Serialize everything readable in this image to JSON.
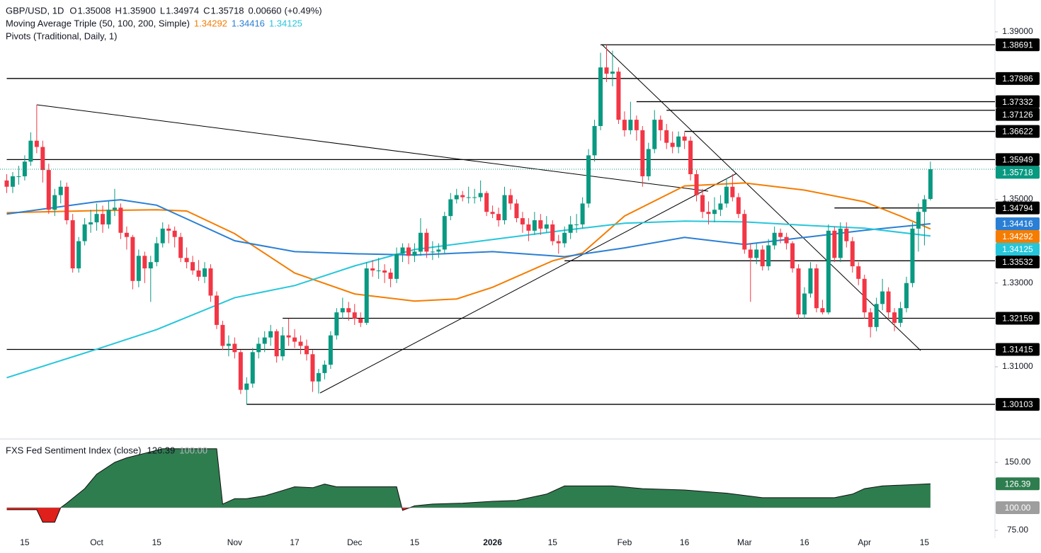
{
  "chart_data": {
    "type": "candlestick",
    "header": {
      "symbol": "GBP/USD, 1D",
      "fields": [
        {
          "key": "O",
          "value": 1.35008,
          "label": "1.35008"
        },
        {
          "key": "H",
          "value": 1.359,
          "label": "1.35900"
        },
        {
          "key": "L",
          "value": 1.34974,
          "label": "1.34974"
        },
        {
          "key": "C",
          "value": 1.35718,
          "label": "1.35718"
        }
      ],
      "change": {
        "value": 0.0066,
        "label": "0.00660"
      },
      "change_pct": {
        "value": 0.49,
        "label": "(+0.49%)"
      }
    },
    "bull_color": "#089981",
    "bear_color": "#f23645",
    "ylim": [
      1.2936,
      1.3976
    ],
    "yticks": [
      {
        "value": 1.39,
        "label": "1.39000"
      },
      {
        "value": 1.35,
        "label": "1.35000"
      },
      {
        "value": 1.33,
        "label": "1.33000"
      },
      {
        "value": 1.31,
        "label": "1.31000"
      }
    ],
    "grid": false,
    "categories": [
      null,
      null,
      null,
      "15",
      null,
      null,
      null,
      null,
      null,
      null,
      null,
      null,
      null,
      null,
      null,
      "Oct",
      null,
      null,
      null,
      null,
      null,
      null,
      null,
      null,
      null,
      "15",
      null,
      null,
      null,
      null,
      null,
      null,
      null,
      null,
      null,
      null,
      null,
      null,
      "Nov",
      null,
      null,
      null,
      null,
      null,
      null,
      null,
      null,
      null,
      "17",
      null,
      null,
      null,
      null,
      null,
      null,
      null,
      null,
      null,
      "Dec",
      null,
      null,
      null,
      null,
      null,
      null,
      null,
      null,
      null,
      "15",
      null,
      null,
      null,
      null,
      null,
      null,
      null,
      null,
      null,
      null,
      null,
      null,
      "2026",
      null,
      null,
      null,
      null,
      null,
      null,
      null,
      null,
      null,
      "15",
      null,
      null,
      null,
      null,
      null,
      null,
      null,
      null,
      null,
      null,
      null,
      "Feb",
      null,
      null,
      null,
      null,
      null,
      null,
      null,
      null,
      null,
      "16",
      null,
      null,
      null,
      null,
      null,
      null,
      null,
      null,
      null,
      "Mar",
      null,
      null,
      null,
      null,
      null,
      null,
      null,
      null,
      null,
      "16",
      null,
      null,
      null,
      null,
      null,
      null,
      null,
      null,
      null,
      "Apr",
      null,
      null,
      null,
      null,
      null,
      null,
      null,
      null,
      null,
      "15",
      null
    ],
    "candles": [
      [
        1.3545,
        1.356,
        1.3515,
        1.353
      ],
      [
        1.353,
        1.3565,
        1.3515,
        1.3555
      ],
      [
        1.3555,
        1.358,
        1.3535,
        1.3555
      ],
      [
        1.3555,
        1.3605,
        1.3545,
        1.359
      ],
      [
        1.359,
        1.366,
        1.358,
        1.364
      ],
      [
        1.364,
        1.3726,
        1.361,
        1.3625
      ],
      [
        1.3625,
        1.364,
        1.354,
        1.357
      ],
      [
        1.357,
        1.3585,
        1.3465,
        1.3475
      ],
      [
        1.3475,
        1.3525,
        1.346,
        1.351
      ],
      [
        1.351,
        1.3545,
        1.349,
        1.353
      ],
      [
        1.353,
        1.354,
        1.344,
        1.345
      ],
      [
        1.345,
        1.3465,
        1.3325,
        1.3335
      ],
      [
        1.3335,
        1.341,
        1.3325,
        1.34
      ],
      [
        1.34,
        1.3455,
        1.339,
        1.344
      ],
      [
        1.344,
        1.3475,
        1.342,
        1.3445
      ],
      [
        1.3445,
        1.349,
        1.3425,
        1.3465
      ],
      [
        1.3465,
        1.3485,
        1.342,
        1.344
      ],
      [
        1.344,
        1.3495,
        1.343,
        1.3475
      ],
      [
        1.3475,
        1.3525,
        1.346,
        1.348
      ],
      [
        1.348,
        1.349,
        1.3405,
        1.342
      ],
      [
        1.342,
        1.3435,
        1.338,
        1.341
      ],
      [
        1.341,
        1.3415,
        1.3285,
        1.3305
      ],
      [
        1.3305,
        1.338,
        1.329,
        1.3365
      ],
      [
        1.3365,
        1.3375,
        1.33,
        1.3335
      ],
      [
        1.3335,
        1.3365,
        1.3255,
        1.335
      ],
      [
        1.335,
        1.341,
        1.334,
        1.3395
      ],
      [
        1.3395,
        1.3445,
        1.3385,
        1.343
      ],
      [
        1.343,
        1.344,
        1.3395,
        1.3425
      ],
      [
        1.3425,
        1.3435,
        1.3385,
        1.341
      ],
      [
        1.341,
        1.342,
        1.335,
        1.336
      ],
      [
        1.336,
        1.3385,
        1.3335,
        1.335
      ],
      [
        1.335,
        1.3365,
        1.332,
        1.333
      ],
      [
        1.333,
        1.3355,
        1.3305,
        1.3315
      ],
      [
        1.3315,
        1.335,
        1.33,
        1.3335
      ],
      [
        1.3335,
        1.3345,
        1.3255,
        1.327
      ],
      [
        1.327,
        1.328,
        1.319,
        1.32
      ],
      [
        1.32,
        1.321,
        1.314,
        1.315
      ],
      [
        1.315,
        1.3175,
        1.3125,
        1.3155
      ],
      [
        1.3155,
        1.317,
        1.312,
        1.3135
      ],
      [
        1.3135,
        1.314,
        1.3035,
        1.3045
      ],
      [
        1.3045,
        1.3075,
        1.301,
        1.306
      ],
      [
        1.306,
        1.3145,
        1.305,
        1.3135
      ],
      [
        1.3135,
        1.317,
        1.312,
        1.3155
      ],
      [
        1.3155,
        1.3185,
        1.3135,
        1.317
      ],
      [
        1.317,
        1.32,
        1.315,
        1.3185
      ],
      [
        1.3185,
        1.319,
        1.311,
        1.3125
      ],
      [
        1.3125,
        1.3195,
        1.3115,
        1.3175
      ],
      [
        1.3175,
        1.3215,
        1.315,
        1.317
      ],
      [
        1.317,
        1.319,
        1.3145,
        1.316
      ],
      [
        1.316,
        1.3175,
        1.313,
        1.315
      ],
      [
        1.315,
        1.3165,
        1.3115,
        1.313
      ],
      [
        1.313,
        1.314,
        1.304,
        1.3065
      ],
      [
        1.3065,
        1.3095,
        1.3036,
        1.3085
      ],
      [
        1.3085,
        1.3115,
        1.307,
        1.3105
      ],
      [
        1.3105,
        1.3185,
        1.3095,
        1.3175
      ],
      [
        1.3175,
        1.324,
        1.3165,
        1.323
      ],
      [
        1.323,
        1.3265,
        1.3215,
        1.324
      ],
      [
        1.324,
        1.3255,
        1.321,
        1.323
      ],
      [
        1.323,
        1.325,
        1.32,
        1.3215
      ],
      [
        1.3215,
        1.323,
        1.3195,
        1.3205
      ],
      [
        1.3205,
        1.335,
        1.32,
        1.3335
      ],
      [
        1.3335,
        1.3355,
        1.3315,
        1.333
      ],
      [
        1.333,
        1.336,
        1.331,
        1.333
      ],
      [
        1.333,
        1.3345,
        1.33,
        1.3325
      ],
      [
        1.3325,
        1.3335,
        1.329,
        1.331
      ],
      [
        1.331,
        1.3385,
        1.33,
        1.337
      ],
      [
        1.337,
        1.3395,
        1.335,
        1.3385
      ],
      [
        1.3385,
        1.3395,
        1.3345,
        1.3365
      ],
      [
        1.3365,
        1.3395,
        1.335,
        1.3375
      ],
      [
        1.3375,
        1.3455,
        1.3365,
        1.342
      ],
      [
        1.342,
        1.343,
        1.336,
        1.3375
      ],
      [
        1.3375,
        1.34,
        1.3355,
        1.3375
      ],
      [
        1.3375,
        1.3395,
        1.336,
        1.338
      ],
      [
        1.338,
        1.347,
        1.337,
        1.346
      ],
      [
        1.346,
        1.3515,
        1.345,
        1.35
      ],
      [
        1.35,
        1.3525,
        1.349,
        1.351
      ],
      [
        1.351,
        1.352,
        1.3495,
        1.3505
      ],
      [
        1.3505,
        1.353,
        1.349,
        1.3505
      ],
      [
        1.3505,
        1.3525,
        1.349,
        1.3505
      ],
      [
        1.3505,
        1.3545,
        1.3495,
        1.3515
      ],
      [
        1.3515,
        1.352,
        1.346,
        1.347
      ],
      [
        1.347,
        1.3485,
        1.3455,
        1.3465
      ],
      [
        1.3465,
        1.348,
        1.3435,
        1.345
      ],
      [
        1.345,
        1.353,
        1.344,
        1.351
      ],
      [
        1.351,
        1.3525,
        1.3475,
        1.349
      ],
      [
        1.349,
        1.35,
        1.3445,
        1.3455
      ],
      [
        1.3455,
        1.347,
        1.342,
        1.344
      ],
      [
        1.344,
        1.3455,
        1.34,
        1.3425
      ],
      [
        1.3425,
        1.347,
        1.3415,
        1.345
      ],
      [
        1.345,
        1.3465,
        1.3415,
        1.343
      ],
      [
        1.343,
        1.346,
        1.342,
        1.344
      ],
      [
        1.344,
        1.345,
        1.339,
        1.34
      ],
      [
        1.34,
        1.3415,
        1.337,
        1.3395
      ],
      [
        1.3395,
        1.3435,
        1.3385,
        1.342
      ],
      [
        1.342,
        1.346,
        1.3405,
        1.344
      ],
      [
        1.344,
        1.3465,
        1.342,
        1.344
      ],
      [
        1.344,
        1.3505,
        1.343,
        1.349
      ],
      [
        1.349,
        1.362,
        1.348,
        1.3605
      ],
      [
        1.3605,
        1.369,
        1.359,
        1.3675
      ],
      [
        1.3675,
        1.385,
        1.3665,
        1.3815
      ],
      [
        1.3815,
        1.3869,
        1.378,
        1.38
      ],
      [
        1.38,
        1.3855,
        1.377,
        1.3805
      ],
      [
        1.3805,
        1.3815,
        1.368,
        1.369
      ],
      [
        1.369,
        1.371,
        1.365,
        1.3665
      ],
      [
        1.3665,
        1.3733,
        1.3655,
        1.369
      ],
      [
        1.369,
        1.37,
        1.364,
        1.3665
      ],
      [
        1.3665,
        1.3675,
        1.353,
        1.3555
      ],
      [
        1.3555,
        1.3635,
        1.3545,
        1.362
      ],
      [
        1.362,
        1.3713,
        1.361,
        1.369
      ],
      [
        1.369,
        1.37,
        1.364,
        1.3665
      ],
      [
        1.3665,
        1.368,
        1.362,
        1.3635
      ],
      [
        1.3635,
        1.3662,
        1.361,
        1.3625
      ],
      [
        1.3625,
        1.3662,
        1.361,
        1.365
      ],
      [
        1.365,
        1.366,
        1.362,
        1.364
      ],
      [
        1.364,
        1.365,
        1.3545,
        1.356
      ],
      [
        1.356,
        1.357,
        1.3495,
        1.351
      ],
      [
        1.351,
        1.3525,
        1.3455,
        1.347
      ],
      [
        1.347,
        1.3495,
        1.344,
        1.3465
      ],
      [
        1.3465,
        1.3505,
        1.3445,
        1.3475
      ],
      [
        1.3475,
        1.351,
        1.346,
        1.349
      ],
      [
        1.349,
        1.355,
        1.348,
        1.353
      ],
      [
        1.353,
        1.356,
        1.3495,
        1.3505
      ],
      [
        1.3505,
        1.3515,
        1.3455,
        1.3465
      ],
      [
        1.3465,
        1.3475,
        1.337,
        1.338
      ],
      [
        1.338,
        1.3395,
        1.3255,
        1.336
      ],
      [
        1.336,
        1.3395,
        1.3345,
        1.338
      ],
      [
        1.338,
        1.339,
        1.333,
        1.334
      ],
      [
        1.334,
        1.3405,
        1.333,
        1.339
      ],
      [
        1.339,
        1.3435,
        1.338,
        1.342
      ],
      [
        1.342,
        1.343,
        1.3395,
        1.341
      ],
      [
        1.341,
        1.342,
        1.338,
        1.3395
      ],
      [
        1.3395,
        1.34,
        1.3325,
        1.3335
      ],
      [
        1.3335,
        1.3345,
        1.3215,
        1.3225
      ],
      [
        1.3225,
        1.329,
        1.3215,
        1.3275
      ],
      [
        1.3275,
        1.335,
        1.3265,
        1.3335
      ],
      [
        1.3335,
        1.3345,
        1.323,
        1.324
      ],
      [
        1.324,
        1.326,
        1.3225,
        1.323
      ],
      [
        1.323,
        1.344,
        1.3225,
        1.3425
      ],
      [
        1.3425,
        1.3435,
        1.335,
        1.336
      ],
      [
        1.336,
        1.3445,
        1.335,
        1.343
      ],
      [
        1.343,
        1.3445,
        1.3385,
        1.34
      ],
      [
        1.34,
        1.341,
        1.3325,
        1.334
      ],
      [
        1.334,
        1.335,
        1.3295,
        1.331
      ],
      [
        1.331,
        1.332,
        1.3215,
        1.323
      ],
      [
        1.323,
        1.324,
        1.317,
        1.3195
      ],
      [
        1.3195,
        1.3265,
        1.3185,
        1.325
      ],
      [
        1.325,
        1.331,
        1.3235,
        1.328
      ],
      [
        1.328,
        1.329,
        1.3215,
        1.323
      ],
      [
        1.323,
        1.324,
        1.3185,
        1.3205
      ],
      [
        1.3205,
        1.3255,
        1.3195,
        1.324
      ],
      [
        1.324,
        1.3315,
        1.323,
        1.33
      ],
      [
        1.33,
        1.3445,
        1.329,
        1.343
      ],
      [
        1.343,
        1.349,
        1.3375,
        1.347
      ],
      [
        1.347,
        1.351,
        1.339,
        1.35
      ],
      [
        1.35008,
        1.359,
        1.34974,
        1.35718
      ]
    ],
    "current_price_color": "#089981",
    "moving_averages": {
      "label": "Moving Average Triple (50, 100, 200, Simple)",
      "series": [
        {
          "color": "#f57c00",
          "x": [
            0,
            15,
            25,
            30,
            38,
            48,
            58,
            68,
            75,
            81,
            91,
            96,
            103,
            113,
            123,
            133,
            143,
            149,
            154
          ],
          "values": [
            1.3468,
            1.3473,
            1.3475,
            1.3472,
            1.3418,
            1.3324,
            1.3274,
            1.3257,
            1.3262,
            1.329,
            1.3353,
            1.3372,
            1.346,
            1.3532,
            1.3539,
            1.3522,
            1.3494,
            1.346,
            1.34292
          ]
        },
        {
          "color": "#2a7fd4",
          "x": [
            0,
            15,
            19,
            25,
            38,
            48,
            58,
            68,
            81,
            93,
            103,
            113,
            123,
            133,
            143,
            154
          ],
          "values": [
            1.3465,
            1.3494,
            1.3499,
            1.3486,
            1.3401,
            1.3375,
            1.337,
            1.3367,
            1.3375,
            1.3363,
            1.3384,
            1.3409,
            1.3392,
            1.3409,
            1.3426,
            1.34416
          ]
        },
        {
          "color": "#26c6da",
          "x": [
            0,
            15,
            25,
            38,
            48,
            58,
            68,
            81,
            93,
            103,
            113,
            123,
            133,
            143,
            154
          ],
          "values": [
            1.3074,
            1.3142,
            1.3189,
            1.3265,
            1.3294,
            1.3341,
            1.338,
            1.3404,
            1.3426,
            1.3443,
            1.3448,
            1.3446,
            1.3438,
            1.3431,
            1.34125
          ]
        }
      ]
    },
    "pivots": {
      "label": "Pivots (Traditional, Daily, 1)",
      "color": "#000000",
      "levels": [
        {
          "value": 1.38691,
          "from": 99
        },
        {
          "value": 1.37886,
          "from": 0
        },
        {
          "value": 1.37332,
          "from": 105
        },
        {
          "value": 1.37126,
          "from": 110
        },
        {
          "value": 1.36622,
          "from": 113
        },
        {
          "value": 1.35949,
          "from": 0
        },
        {
          "value": 1.34794,
          "from": 138
        },
        {
          "value": 1.33532,
          "from": 93
        },
        {
          "value": 1.32159,
          "from": 46
        },
        {
          "value": 1.31415,
          "from": 0
        },
        {
          "value": 1.30103,
          "from": 40
        }
      ]
    },
    "indicator": {
      "type": "area",
      "title": "FXS Fed Sentiment Index (close)",
      "ylim": [
        66.4,
        174.2
      ],
      "yticks": [
        {
          "value": 150,
          "label": "150.00"
        },
        {
          "value": 75,
          "label": "75.00"
        }
      ],
      "baseline": {
        "value": 100,
        "label": "100.00"
      },
      "above_color": "#2e7d4f",
      "below_color": "#e0201b",
      "x": [
        0,
        5,
        6,
        8,
        9,
        10,
        13,
        15,
        18,
        20,
        23,
        26,
        35,
        36,
        38,
        40,
        43,
        46,
        48,
        51,
        53,
        55,
        65,
        66,
        68,
        71,
        76,
        81,
        85,
        90,
        93,
        101,
        106,
        113,
        120,
        126,
        138,
        141,
        143,
        146,
        154
      ],
      "values": [
        97.7,
        97.7,
        84,
        84,
        100,
        105,
        121,
        137,
        150,
        155,
        160,
        165,
        165,
        104,
        110,
        110,
        113,
        119,
        123,
        122,
        126,
        123,
        123,
        97,
        102,
        104,
        105,
        107,
        108,
        115,
        124,
        124,
        121,
        119.5,
        116,
        111,
        111,
        115,
        121,
        124,
        126.39
      ]
    }
  }
}
